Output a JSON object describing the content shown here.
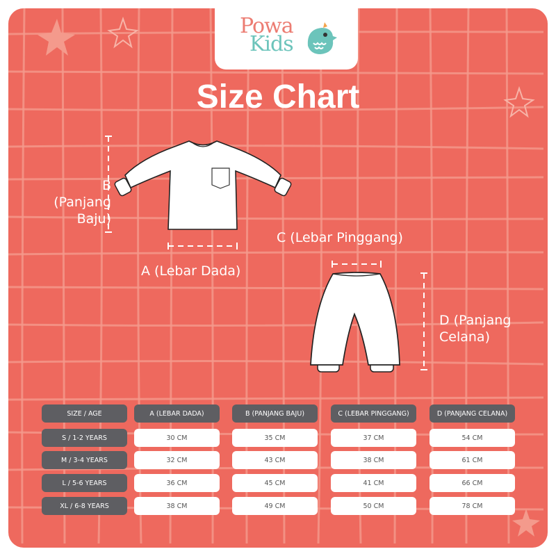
{
  "brand": {
    "logo_line1": "Powa",
    "logo_line2": "Kids",
    "colors": {
      "background": "#ee695e",
      "grid": "#f49a8c",
      "header_cell": "#5e5e62",
      "value_cell": "#ffffff"
    }
  },
  "title": "Size Chart",
  "diagram": {
    "label_b": "B\n(Panjang\nBaju)",
    "label_a": "A (Lebar Dada)",
    "label_c": "C (Lebar Pinggang)",
    "label_d": "D (Panjang\nCelana)"
  },
  "table": {
    "headers": [
      "SIZE / AGE",
      "A (LEBAR DADA)",
      "B (PANJANG BAJU)",
      "C (LEBAR PINGGANG)",
      "D (PANJANG CELANA)"
    ],
    "rows": [
      [
        "S / 1-2 YEARS",
        "30 CM",
        "35 CM",
        "37 CM",
        "54 CM"
      ],
      [
        "M / 3-4 YEARS",
        "32 CM",
        "43 CM",
        "38 CM",
        "61 CM"
      ],
      [
        "L / 5-6 YEARS",
        "36 CM",
        "45 CM",
        "41 CM",
        "66 CM"
      ],
      [
        "XL / 6-8 YEARS",
        "38 CM",
        "49 CM",
        "50 CM",
        "78 CM"
      ]
    ]
  }
}
